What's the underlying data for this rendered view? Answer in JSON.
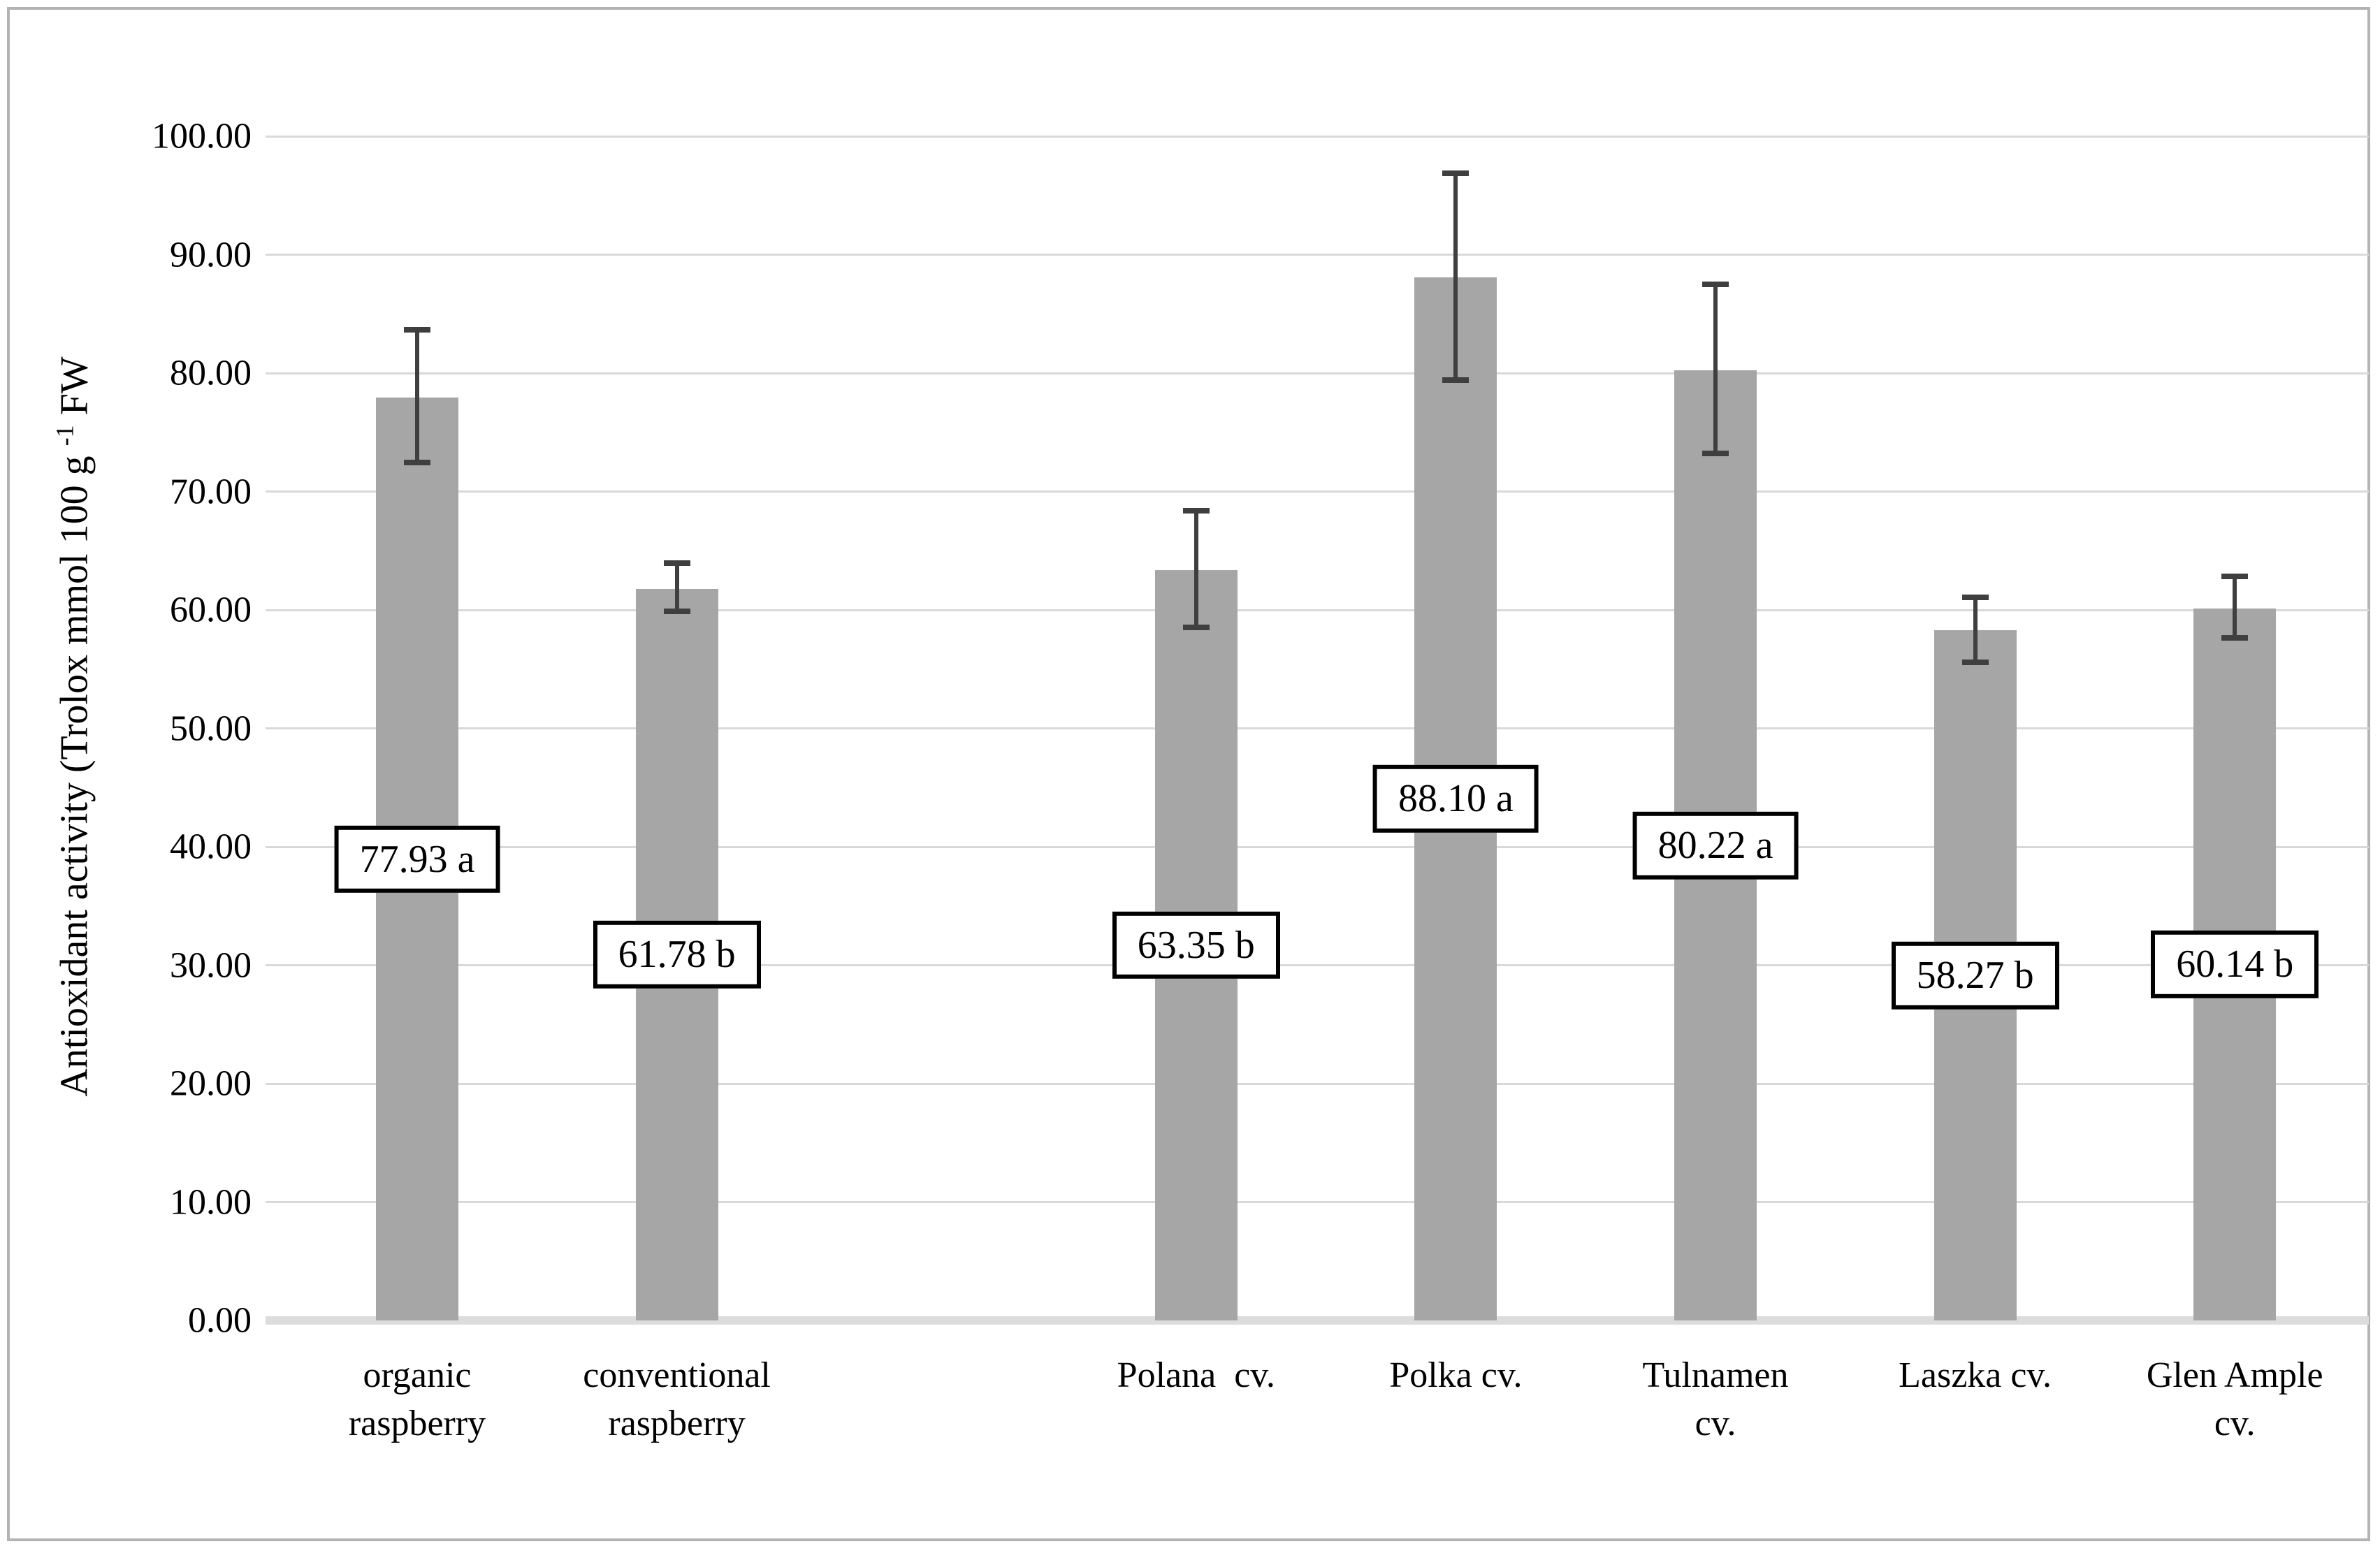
{
  "figure": {
    "background_color": "#ffffff",
    "frame_border_color": "#b3b3b3"
  },
  "chart_data": {
    "type": "bar",
    "title": "",
    "xlabel": "",
    "ylabel": "Antioxidant activity (Trolox mmol 100 g⁻¹ FW",
    "ylabel_parts": {
      "prefix": "Antioxidant activity (Trolox mmol 100 g ",
      "superscript": "-1",
      "suffix": " FW"
    },
    "ylim": [
      0,
      100
    ],
    "ytick_step": 10,
    "ytick_decimals": 2,
    "grid": true,
    "legend_position": "none",
    "bar_color": "#a6a6a6",
    "error_bar_color": "#3f3f3f",
    "gridline_color": "#d9d9d9",
    "axis_line_color": "#dcdcdc",
    "label_box_fill": "#ffffff",
    "label_box_border_color": "#000000",
    "text_color": "#000000",
    "categories": [
      "organic raspberry",
      "conventional raspberry",
      "Polana  cv.",
      "Polka cv.",
      "Tulnamen cv.",
      "Laszka cv.",
      "Glen Ample cv."
    ],
    "bars": [
      {
        "slot": 0,
        "label_lines": [
          "organic",
          "raspberry"
        ],
        "value": 77.93,
        "data_label": "77.93 a",
        "error_plus": 5.7,
        "error_minus": 5.5
      },
      {
        "slot": 1,
        "label_lines": [
          "conventional",
          "raspberry"
        ],
        "value": 61.78,
        "data_label": "61.78 b",
        "error_plus": 2.2,
        "error_minus": 1.9
      },
      {
        "slot": 3,
        "label_lines": [
          "Polana  cv."
        ],
        "value": 63.35,
        "data_label": "63.35 b",
        "error_plus": 5.0,
        "error_minus": 4.8
      },
      {
        "slot": 4,
        "label_lines": [
          "Polka cv."
        ],
        "value": 88.1,
        "data_label": "88.10 a",
        "error_plus": 8.8,
        "error_minus": 8.7
      },
      {
        "slot": 5,
        "label_lines": [
          "Tulnamen",
          "cv."
        ],
        "value": 80.22,
        "data_label": "80.22 a",
        "error_plus": 7.3,
        "error_minus": 7.0
      },
      {
        "slot": 6,
        "label_lines": [
          "Laszka cv."
        ],
        "value": 58.27,
        "data_label": "58.27 b",
        "error_plus": 2.8,
        "error_minus": 2.7
      },
      {
        "slot": 7,
        "label_lines": [
          "Glen Ample",
          "cv."
        ],
        "value": 60.14,
        "data_label": "60.14 b",
        "error_plus": 2.7,
        "error_minus": 2.5
      }
    ]
  }
}
